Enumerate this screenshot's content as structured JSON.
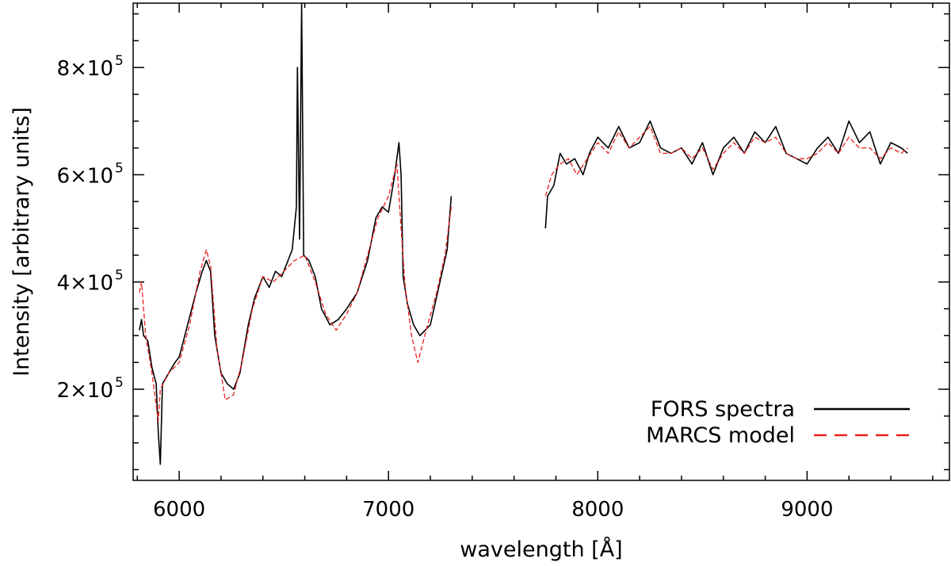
{
  "chart_data": {
    "type": "line",
    "xlabel": "wavelength [Å]",
    "ylabel": "Intensity [arbitrary units]",
    "xlim": [
      5780,
      9680
    ],
    "ylim": [
      30000,
      920000
    ],
    "x_ticks": [
      {
        "value": 6000,
        "label": "6000"
      },
      {
        "value": 7000,
        "label": "7000"
      },
      {
        "value": 8000,
        "label": "8000"
      },
      {
        "value": 9000,
        "label": "9000"
      }
    ],
    "y_ticks": [
      {
        "value": 200000,
        "mant": "2×10",
        "exp": "5"
      },
      {
        "value": 400000,
        "mant": "4×10",
        "exp": "5"
      },
      {
        "value": 600000,
        "mant": "6×10",
        "exp": "5"
      },
      {
        "value": 800000,
        "mant": "8×10",
        "exp": "5"
      }
    ],
    "legend": {
      "placement": "bottom-right",
      "entries": [
        {
          "label": "FORS spectra",
          "color": "#000000",
          "style": "solid"
        },
        {
          "label": "MARCS model",
          "color": "#e8201c",
          "style": "dashed"
        }
      ]
    },
    "series": [
      {
        "name": "FORS spectra",
        "color": "#000000",
        "segments": [
          [
            [
              5810,
              310000
            ],
            [
              5820,
              330000
            ],
            [
              5830,
              300000
            ],
            [
              5850,
              290000
            ],
            [
              5870,
              240000
            ],
            [
              5890,
              210000
            ],
            [
              5900,
              120000
            ],
            [
              5910,
              60000
            ],
            [
              5920,
              210000
            ],
            [
              5950,
              230000
            ],
            [
              5980,
              250000
            ],
            [
              6000,
              260000
            ],
            [
              6040,
              320000
            ],
            [
              6080,
              380000
            ],
            [
              6110,
              420000
            ],
            [
              6130,
              440000
            ],
            [
              6150,
              420000
            ],
            [
              6170,
              300000
            ],
            [
              6200,
              230000
            ],
            [
              6230,
              210000
            ],
            [
              6260,
              200000
            ],
            [
              6290,
              230000
            ],
            [
              6330,
              320000
            ],
            [
              6360,
              370000
            ],
            [
              6380,
              390000
            ],
            [
              6400,
              410000
            ],
            [
              6430,
              390000
            ],
            [
              6460,
              420000
            ],
            [
              6490,
              410000
            ],
            [
              6520,
              440000
            ],
            [
              6540,
              460000
            ],
            [
              6560,
              540000
            ],
            [
              6565,
              800000
            ],
            [
              6575,
              480000
            ],
            [
              6585,
              920000
            ],
            [
              6595,
              450000
            ],
            [
              6620,
              440000
            ],
            [
              6650,
              410000
            ],
            [
              6680,
              350000
            ],
            [
              6720,
              320000
            ],
            [
              6760,
              330000
            ],
            [
              6800,
              350000
            ],
            [
              6850,
              380000
            ],
            [
              6900,
              440000
            ],
            [
              6940,
              520000
            ],
            [
              6970,
              540000
            ],
            [
              7000,
              530000
            ],
            [
              7030,
              600000
            ],
            [
              7050,
              660000
            ],
            [
              7060,
              600000
            ],
            [
              7070,
              410000
            ],
            [
              7090,
              360000
            ],
            [
              7120,
              320000
            ],
            [
              7150,
              300000
            ],
            [
              7200,
              320000
            ],
            [
              7240,
              390000
            ],
            [
              7280,
              460000
            ],
            [
              7300,
              560000
            ]
          ],
          [
            [
              7750,
              500000
            ],
            [
              7760,
              560000
            ],
            [
              7790,
              580000
            ],
            [
              7820,
              640000
            ],
            [
              7850,
              620000
            ],
            [
              7890,
              630000
            ],
            [
              7930,
              600000
            ],
            [
              7960,
              640000
            ],
            [
              8000,
              670000
            ],
            [
              8050,
              650000
            ],
            [
              8100,
              690000
            ],
            [
              8150,
              650000
            ],
            [
              8200,
              660000
            ],
            [
              8250,
              700000
            ],
            [
              8300,
              650000
            ],
            [
              8350,
              640000
            ],
            [
              8400,
              650000
            ],
            [
              8450,
              620000
            ],
            [
              8500,
              660000
            ],
            [
              8550,
              600000
            ],
            [
              8600,
              650000
            ],
            [
              8650,
              670000
            ],
            [
              8700,
              640000
            ],
            [
              8750,
              680000
            ],
            [
              8800,
              660000
            ],
            [
              8850,
              690000
            ],
            [
              8900,
              640000
            ],
            [
              8950,
              630000
            ],
            [
              9000,
              620000
            ],
            [
              9050,
              650000
            ],
            [
              9100,
              670000
            ],
            [
              9150,
              640000
            ],
            [
              9200,
              700000
            ],
            [
              9250,
              660000
            ],
            [
              9300,
              680000
            ],
            [
              9350,
              620000
            ],
            [
              9400,
              660000
            ],
            [
              9450,
              650000
            ],
            [
              9480,
              640000
            ]
          ]
        ]
      },
      {
        "name": "MARCS model",
        "color": "#e8201c",
        "segments": [
          [
            [
              5810,
              380000
            ],
            [
              5820,
              400000
            ],
            [
              5840,
              300000
            ],
            [
              5870,
              230000
            ],
            [
              5900,
              140000
            ],
            [
              5910,
              200000
            ],
            [
              5950,
              230000
            ],
            [
              6000,
              250000
            ],
            [
              6050,
              320000
            ],
            [
              6100,
              420000
            ],
            [
              6130,
              460000
            ],
            [
              6150,
              430000
            ],
            [
              6180,
              280000
            ],
            [
              6220,
              180000
            ],
            [
              6260,
              190000
            ],
            [
              6300,
              250000
            ],
            [
              6350,
              350000
            ],
            [
              6400,
              410000
            ],
            [
              6450,
              400000
            ],
            [
              6500,
              420000
            ],
            [
              6550,
              440000
            ],
            [
              6600,
              450000
            ],
            [
              6650,
              400000
            ],
            [
              6700,
              340000
            ],
            [
              6750,
              310000
            ],
            [
              6800,
              340000
            ],
            [
              6850,
              380000
            ],
            [
              6900,
              450000
            ],
            [
              6950,
              520000
            ],
            [
              7000,
              560000
            ],
            [
              7040,
              620000
            ],
            [
              7060,
              500000
            ],
            [
              7080,
              390000
            ],
            [
              7110,
              300000
            ],
            [
              7140,
              250000
            ],
            [
              7180,
              310000
            ],
            [
              7230,
              380000
            ],
            [
              7270,
              450000
            ],
            [
              7300,
              540000
            ]
          ],
          [
            [
              7750,
              560000
            ],
            [
              7780,
              600000
            ],
            [
              7820,
              620000
            ],
            [
              7860,
              630000
            ],
            [
              7900,
              600000
            ],
            [
              7950,
              630000
            ],
            [
              8000,
              660000
            ],
            [
              8050,
              640000
            ],
            [
              8100,
              680000
            ],
            [
              8150,
              650000
            ],
            [
              8200,
              670000
            ],
            [
              8250,
              690000
            ],
            [
              8300,
              640000
            ],
            [
              8350,
              640000
            ],
            [
              8400,
              650000
            ],
            [
              8450,
              630000
            ],
            [
              8500,
              650000
            ],
            [
              8550,
              610000
            ],
            [
              8600,
              640000
            ],
            [
              8650,
              660000
            ],
            [
              8700,
              640000
            ],
            [
              8750,
              670000
            ],
            [
              8800,
              660000
            ],
            [
              8850,
              670000
            ],
            [
              8900,
              640000
            ],
            [
              8950,
              630000
            ],
            [
              9000,
              630000
            ],
            [
              9050,
              640000
            ],
            [
              9100,
              660000
            ],
            [
              9150,
              640000
            ],
            [
              9200,
              670000
            ],
            [
              9250,
              650000
            ],
            [
              9300,
              650000
            ],
            [
              9350,
              630000
            ],
            [
              9400,
              650000
            ],
            [
              9450,
              640000
            ],
            [
              9480,
              650000
            ]
          ]
        ]
      }
    ]
  }
}
